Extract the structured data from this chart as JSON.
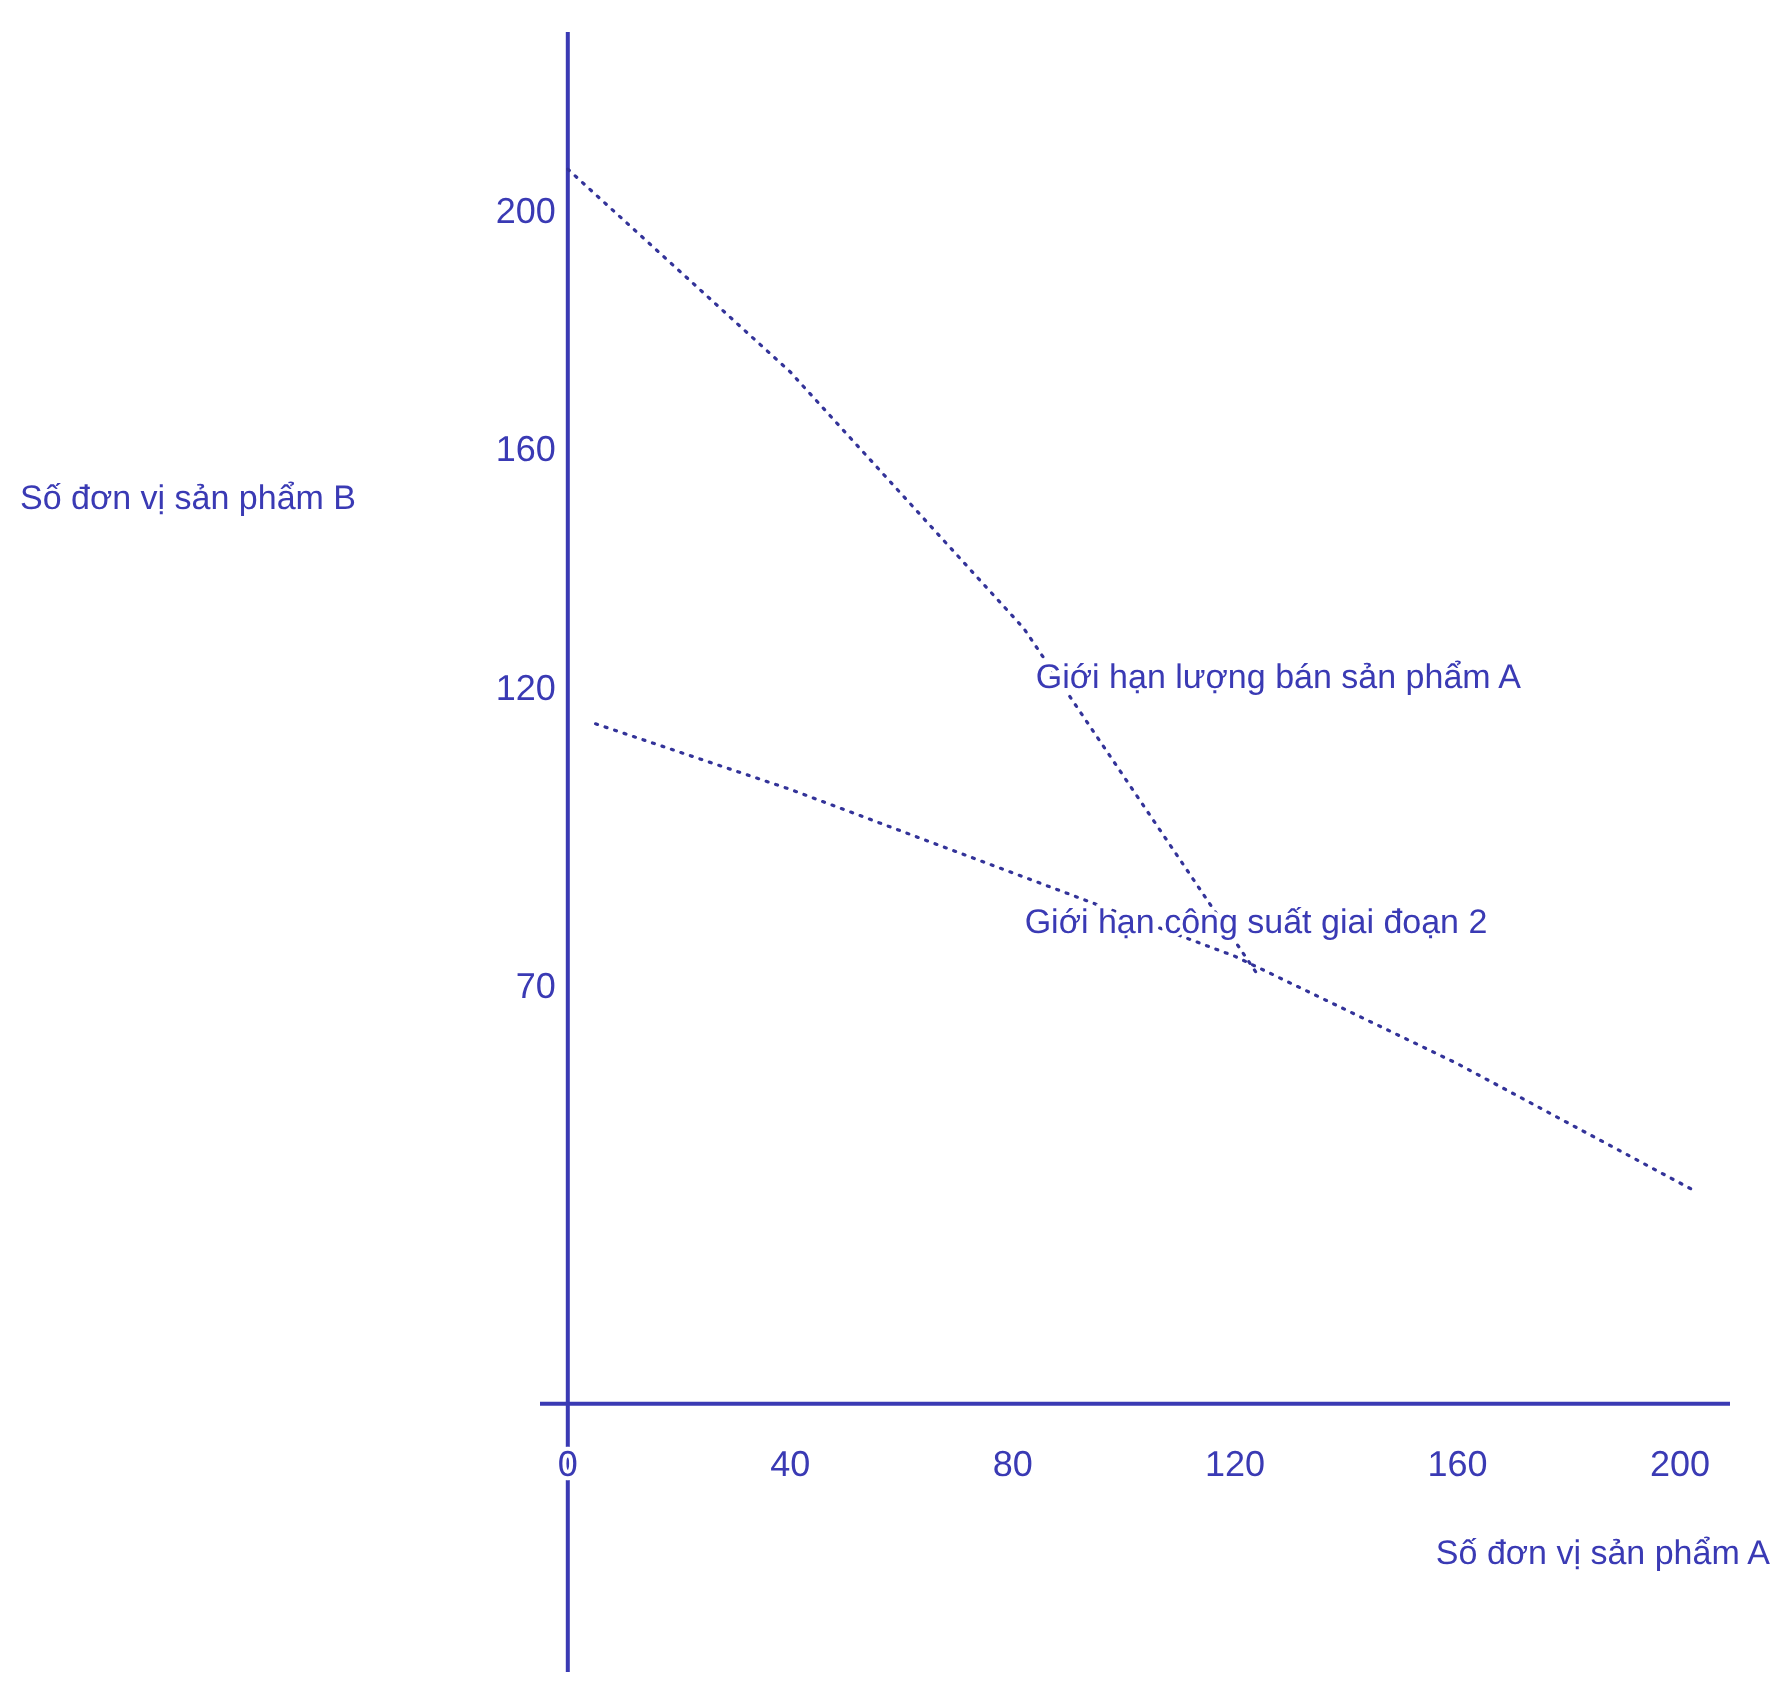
{
  "chart_data": {
    "type": "line",
    "xlabel": "Số đơn vị sản phẩm A",
    "ylabel": "Số đơn vị sản phẩm B",
    "xlim": [
      -5,
      209
    ],
    "ylim": [
      -45,
      230
    ],
    "xticks": [
      0,
      40,
      80,
      120,
      160,
      200
    ],
    "yticks": [
      70,
      120,
      160,
      200
    ],
    "grid": false,
    "line_style": "dotted",
    "marker": "none",
    "series": [
      {
        "name": "Giới hạn lượng bán sản phẩm A",
        "color": "#333399",
        "x": [
          0,
          40,
          82,
          124
        ],
        "values": [
          207,
          173,
          130,
          72
        ]
      },
      {
        "name": "Giới hạn công suất giai đoạn 2",
        "color": "#333399",
        "x": [
          5,
          40,
          80,
          120,
          160,
          202
        ],
        "values": [
          114,
          103,
          89,
          75,
          57,
          36
        ]
      }
    ]
  }
}
